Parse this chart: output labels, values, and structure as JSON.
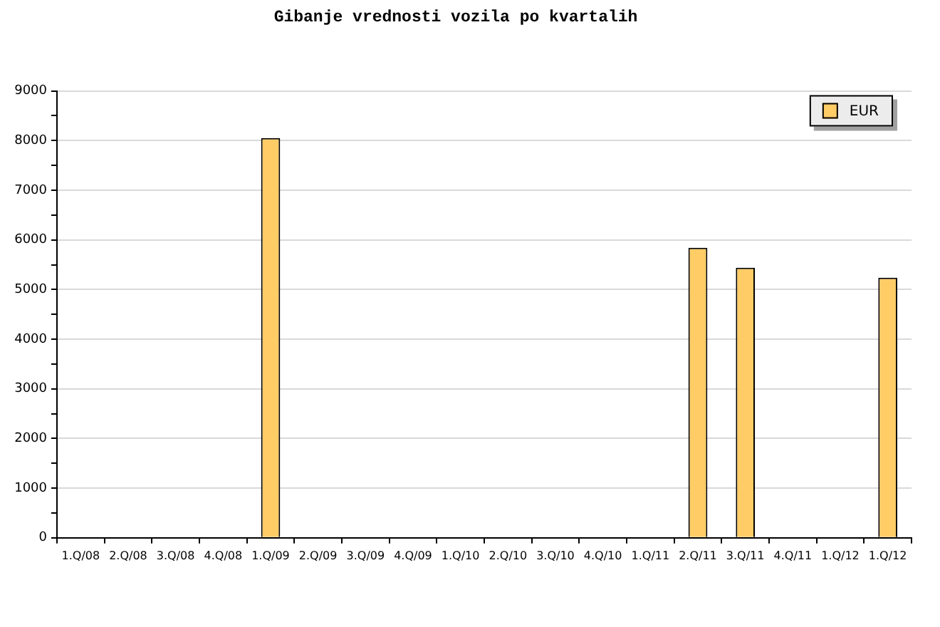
{
  "chart_data": {
    "type": "bar",
    "title": "Gibanje vrednosti vozila po kvartalih",
    "categories": [
      "1.Q/08",
      "2.Q/08",
      "3.Q/08",
      "4.Q/08",
      "1.Q/09",
      "2.Q/09",
      "3.Q/09",
      "4.Q/09",
      "1.Q/10",
      "2.Q/10",
      "3.Q/10",
      "4.Q/10",
      "1.Q/11",
      "2.Q/11",
      "3.Q/11",
      "4.Q/11",
      "1.Q/12",
      "1.Q/12"
    ],
    "series": [
      {
        "name": "EUR",
        "color": "#ffcc66",
        "values": [
          null,
          null,
          null,
          null,
          8050,
          null,
          null,
          null,
          null,
          null,
          null,
          null,
          null,
          5840,
          5440,
          null,
          null,
          5240
        ]
      }
    ],
    "ylim": [
      0,
      9000
    ],
    "yticks": [
      0,
      {
        "value": 500,
        "label": null
      },
      1000,
      {
        "value": 1500,
        "label": null
      },
      2000,
      {
        "value": 2500,
        "label": null
      },
      3000,
      {
        "value": 3500,
        "label": null
      },
      4000,
      {
        "value": 4500,
        "label": null
      },
      5000,
      {
        "value": 5500,
        "label": null
      },
      6000,
      {
        "value": 6500,
        "label": null
      },
      7000,
      {
        "value": 7500,
        "label": null
      },
      8000,
      {
        "value": 8500,
        "label": null
      },
      9000
    ],
    "grid": "y",
    "legend": "top right"
  }
}
